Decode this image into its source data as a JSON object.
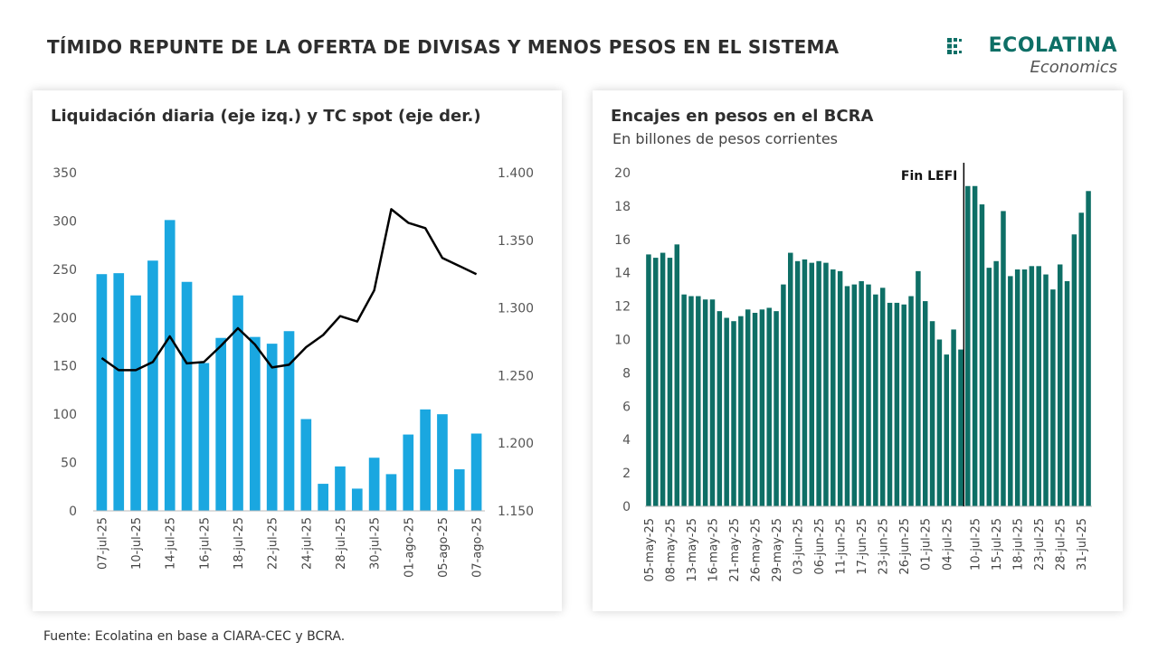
{
  "page": {
    "title": "TÍMIDO REPUNTE DE LA OFERTA DE DIVISAS Y MENOS PESOS EN EL SISTEMA",
    "footer": "Fuente: Ecolatina en base a CIARA-CEC y BCRA."
  },
  "logo": {
    "word": "ECOLATINA",
    "sub": "Economics",
    "color": "#0e6f66"
  },
  "chart_data": [
    {
      "type": "bar",
      "title": "Liquidación diaria (eje izq.) y TC spot (eje der.)",
      "tick_dates": [
        "07-jul-25",
        "10-jul-25",
        "14-jul-25",
        "16-jul-25",
        "18-jul-25",
        "22-jul-25",
        "24-jul-25",
        "28-jul-25",
        "30-jul-25",
        "01-ago-25",
        "05-ago-25",
        "07-ago-25"
      ],
      "series": [
        {
          "kind": "bar",
          "axis": "left",
          "color": "#1aa7e0",
          "values": [
            245,
            246,
            223,
            259,
            301,
            237,
            153,
            179,
            223,
            180,
            173,
            186,
            95,
            28,
            46,
            23,
            55,
            38,
            79,
            105,
            100,
            43,
            80
          ]
        },
        {
          "kind": "line",
          "axis": "right",
          "color": "#000000",
          "values": [
            1263,
            1254,
            1254,
            1260,
            1279,
            1259,
            1260,
            1272,
            1285,
            1273,
            1256,
            1258,
            1271,
            1280,
            1294,
            1290,
            1313,
            1373,
            1363,
            1359,
            1337,
            1331,
            1325
          ]
        }
      ],
      "ylim_left": [
        0,
        350
      ],
      "yticks_left": [
        "0",
        "50",
        "100",
        "150",
        "200",
        "250",
        "300",
        "350"
      ],
      "ylim_right": [
        1150,
        1400
      ],
      "yticks_right": [
        "1.150",
        "1.200",
        "1.250",
        "1.300",
        "1.350",
        "1.400"
      ]
    },
    {
      "type": "bar",
      "title": "Encajes en pesos en el BCRA",
      "subtitle": "En billones de pesos corrientes",
      "tick_dates": [
        "05-may-25",
        "08-may-25",
        "13-may-25",
        "16-may-25",
        "21-may-25",
        "26-may-25",
        "29-may-25",
        "03-jun-25",
        "06-jun-25",
        "11-jun-25",
        "17-jun-25",
        "23-jun-25",
        "26-jun-25",
        "01-jul-25",
        "04-jul-25",
        "10-jul-25",
        "15-jul-25",
        "18-jul-25",
        "23-jul-25",
        "28-jul-25",
        "31-jul-25"
      ],
      "color": "#0e6f66",
      "values": [
        15.1,
        14.9,
        15.2,
        14.9,
        15.7,
        12.7,
        12.6,
        12.6,
        12.4,
        12.4,
        11.7,
        11.3,
        11.1,
        11.4,
        11.8,
        11.6,
        11.8,
        11.9,
        11.7,
        13.3,
        15.2,
        14.7,
        14.8,
        14.6,
        14.7,
        14.6,
        14.2,
        14.1,
        13.2,
        13.3,
        13.5,
        13.3,
        12.7,
        13.1,
        12.2,
        12.2,
        12.1,
        12.6,
        14.1,
        12.3,
        11.1,
        10.0,
        9.1,
        10.6,
        9.4,
        19.2,
        19.2,
        18.1,
        14.3,
        14.7,
        17.7,
        13.8,
        14.2,
        14.2,
        14.4,
        14.4,
        13.9,
        13.0,
        14.5,
        13.5,
        16.3,
        17.6,
        18.9
      ],
      "annotation": {
        "label": "Fin LEFI",
        "index": 45
      },
      "ylim": [
        0,
        20
      ],
      "yticks": [
        "0",
        "2",
        "4",
        "6",
        "8",
        "10",
        "12",
        "14",
        "16",
        "18",
        "20"
      ]
    }
  ]
}
